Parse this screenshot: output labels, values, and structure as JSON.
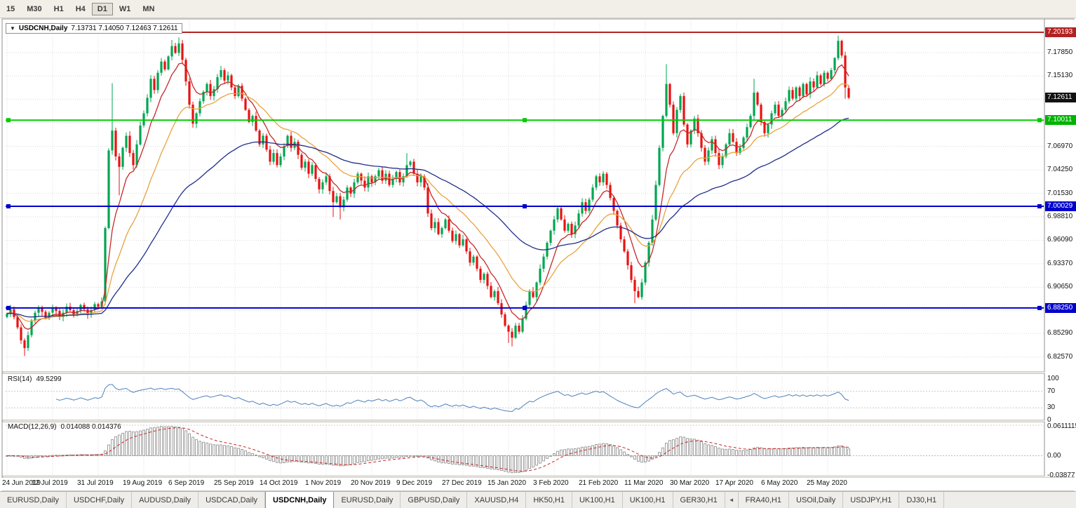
{
  "toolbar": {
    "timeframes": [
      {
        "label": "15",
        "active": false
      },
      {
        "label": "M30",
        "active": false
      },
      {
        "label": "H1",
        "active": false
      },
      {
        "label": "H4",
        "active": false
      },
      {
        "label": "D1",
        "active": true
      },
      {
        "label": "W1",
        "active": false
      },
      {
        "label": "MN",
        "active": false
      }
    ]
  },
  "chart": {
    "symbol": "USDCNH,Daily",
    "ohlc_text": "7.13731 7.14050 7.12463 7.12611",
    "open": "7.13731",
    "high": "7.14050",
    "low": "7.12463",
    "close": "7.12611"
  },
  "colors": {
    "bull": "#00A651",
    "bear": "#E81212",
    "grid": "#DBDBDB",
    "rsi_line": "#4F81BD",
    "macd_hist": "#9E9E9E",
    "macd_signal": "#CC2222",
    "badge_black": "#111111"
  },
  "price_axis": {
    "badges": [
      {
        "label": "7.20193",
        "value": 7.20193,
        "bg": "#B22222"
      },
      {
        "label": "7.12611",
        "value": 7.12611,
        "bg": "#111111"
      },
      {
        "label": "7.10011",
        "value": 7.10011,
        "bg": "#00B300"
      },
      {
        "label": "7.00029",
        "value": 7.00029,
        "bg": "#0000CC"
      },
      {
        "label": "6.88250",
        "value": 6.8825,
        "bg": "#0000CC"
      }
    ]
  },
  "rsi": {
    "name": "RSI(14)",
    "value": "49.5299",
    "period": 14,
    "levels": [
      70,
      30
    ],
    "axis": [
      {
        "label": "100",
        "value": 100
      },
      {
        "label": "70",
        "value": 70
      },
      {
        "label": "30",
        "value": 30
      },
      {
        "label": "0",
        "value": 0
      }
    ]
  },
  "macd": {
    "name": "MACD(12,26,9)",
    "values": "0.014088 0.014376",
    "last_main": 0.014088,
    "last_signal": 0.014376,
    "axis_max": 0.0611115,
    "axis_min": -0.03877,
    "axis": [
      {
        "label": "0.0611115",
        "value": 0.0611115
      },
      {
        "label": "0.00",
        "value": 0
      },
      {
        "label": "-0.03877",
        "value": -0.03877
      }
    ]
  },
  "tabs": {
    "items": [
      {
        "label": "EURUSD,Daily",
        "active": false
      },
      {
        "label": "USDCHF,Daily",
        "active": false
      },
      {
        "label": "AUDUSD,Daily",
        "active": false
      },
      {
        "label": "USDCAD,Daily",
        "active": false
      },
      {
        "label": "USDCNH,Daily",
        "active": true
      },
      {
        "label": "EURUSD,Daily",
        "active": false
      },
      {
        "label": "GBPUSD,Daily",
        "active": false
      },
      {
        "label": "XAUUSD,H4",
        "active": false
      },
      {
        "label": "HK50,H1",
        "active": false
      },
      {
        "label": "UK100,H1",
        "active": false
      },
      {
        "label": "UK100,H1",
        "active": false
      },
      {
        "label": "GER30,H1",
        "active": false
      },
      {
        "label": "◄",
        "active": false,
        "narrow": true
      },
      {
        "label": "FRA40,H1",
        "active": false
      },
      {
        "label": "USOil,Daily",
        "active": false
      },
      {
        "label": "USDJPY,H1",
        "active": false
      },
      {
        "label": "DJ30,H1",
        "active": false
      }
    ]
  },
  "chart_data": {
    "type": "candlestick",
    "title": "USDCNH,Daily",
    "symbol": "USDCNH",
    "timeframe": "Daily",
    "ylim": [
      6.808,
      7.213
    ],
    "first_open": 6.872,
    "last_candle": {
      "o": 7.13731,
      "h": 7.1405,
      "l": 7.12463,
      "c": 7.12611
    },
    "closes": [
      6.876,
      6.881,
      6.872,
      6.86,
      6.845,
      6.836,
      6.851,
      6.868,
      6.877,
      6.883,
      6.878,
      6.871,
      6.877,
      6.883,
      6.879,
      6.872,
      6.877,
      6.884,
      6.88,
      6.874,
      6.879,
      6.886,
      6.881,
      6.875,
      6.88,
      6.887,
      6.884,
      6.89,
      6.975,
      7.065,
      7.088,
      7.058,
      7.046,
      7.068,
      7.082,
      7.062,
      7.048,
      7.072,
      7.094,
      7.108,
      7.126,
      7.148,
      7.135,
      7.155,
      7.168,
      7.159,
      7.174,
      7.186,
      7.178,
      7.189,
      7.17,
      7.145,
      7.118,
      7.096,
      7.108,
      7.122,
      7.133,
      7.142,
      7.128,
      7.136,
      7.15,
      7.158,
      7.146,
      7.152,
      7.138,
      7.128,
      7.14,
      7.125,
      7.112,
      7.098,
      7.105,
      7.088,
      7.072,
      7.082,
      7.066,
      7.052,
      7.062,
      7.048,
      7.058,
      7.07,
      7.082,
      7.068,
      7.075,
      7.06,
      7.045,
      7.052,
      7.038,
      7.048,
      7.032,
      7.02,
      7.028,
      7.035,
      7.018,
      7.005,
      7.012,
      6.999,
      7.008,
      7.022,
      7.015,
      7.028,
      7.038,
      7.03,
      7.022,
      7.035,
      7.028,
      7.035,
      7.042,
      7.03,
      7.038,
      7.025,
      7.032,
      7.04,
      7.028,
      7.035,
      7.048,
      7.052,
      7.038,
      7.028,
      7.035,
      7.022,
      6.992,
      6.975,
      6.982,
      6.968,
      6.975,
      6.985,
      6.972,
      6.96,
      6.968,
      6.955,
      6.962,
      6.948,
      6.935,
      6.942,
      6.928,
      6.915,
      6.922,
      6.908,
      6.895,
      6.902,
      6.888,
      6.875,
      6.862,
      6.855,
      6.848,
      6.862,
      6.855,
      6.87,
      6.886,
      6.902,
      6.895,
      6.912,
      6.928,
      6.942,
      6.958,
      6.972,
      6.985,
      6.998,
      6.985,
      6.972,
      6.98,
      6.968,
      6.978,
      6.992,
      7.005,
      6.995,
      7.008,
      7.022,
      7.035,
      7.028,
      7.038,
      7.025,
      7.01,
      6.995,
      6.978,
      6.962,
      6.948,
      6.932,
      6.915,
      6.902,
      6.895,
      6.912,
      6.935,
      6.958,
      6.985,
      7.025,
      7.068,
      7.105,
      7.142,
      7.118,
      7.085,
      7.112,
      7.128,
      7.095,
      7.072,
      7.088,
      7.102,
      7.085,
      7.068,
      7.052,
      7.065,
      7.078,
      7.062,
      7.048,
      7.058,
      7.072,
      7.085,
      7.075,
      7.062,
      7.068,
      7.08,
      7.092,
      7.105,
      7.132,
      7.118,
      7.098,
      7.085,
      7.095,
      7.108,
      7.118,
      7.105,
      7.112,
      7.122,
      7.135,
      7.125,
      7.138,
      7.128,
      7.142,
      7.13,
      7.145,
      7.138,
      7.152,
      7.142,
      7.155,
      7.148,
      7.158,
      7.172,
      7.192,
      7.175,
      7.138,
      7.12611
    ],
    "overrides": {
      "5": {
        "l": 6.827
      },
      "30": {
        "h": 7.143
      },
      "32": {
        "l": 7.013
      },
      "47": {
        "h": 7.193
      },
      "49": {
        "h": 7.196
      },
      "93": {
        "l": 6.988
      },
      "95": {
        "l": 6.985
      },
      "114": {
        "h": 7.062
      },
      "143": {
        "l": 6.842
      },
      "144": {
        "l": 6.838
      },
      "179": {
        "l": 6.888
      },
      "188": {
        "h": 7.165
      },
      "213": {
        "h": 7.148
      },
      "237": {
        "h": 7.198
      },
      "239": {
        "l": 7.125
      },
      "240": {
        "o": 7.13731,
        "h": 7.1405,
        "l": 7.12463,
        "c": 7.12611
      }
    },
    "x_labels": [
      "24 Jun 2019",
      "12 Jul 2019",
      "31 Jul 2019",
      "19 Aug 2019",
      "6 Sep 2019",
      "25 Sep 2019",
      "14 Oct 2019",
      "1 Nov 2019",
      "20 Nov 2019",
      "9 Dec 2019",
      "27 Dec 2019",
      "15 Jan 2020",
      "3 Feb 2020",
      "21 Feb 2020",
      "11 Mar 2020",
      "30 Mar 2020",
      "17 Apr 2020",
      "6 May 2020",
      "25 May 2020"
    ],
    "x_label_indices": [
      0,
      13,
      26,
      39,
      52,
      65,
      78,
      91,
      104,
      117,
      130,
      143,
      156,
      169,
      182,
      195,
      208,
      221,
      234
    ],
    "y_ticks_labeled": [
      "7.17850",
      "7.15130",
      "7.06970",
      "7.04250",
      "7.01530",
      "6.98810",
      "6.96090",
      "6.93370",
      "6.90650",
      "6.85290",
      "6.82570"
    ],
    "y_ticks_unlabeled": [
      7.1241,
      7.0969,
      6.8793
    ],
    "levels": [
      {
        "value": 7.20193,
        "label": "7.20193",
        "color": "#B22222",
        "width": 2,
        "handles": false
      },
      {
        "value": 7.10011,
        "label": "7.10011",
        "color": "#00CC00",
        "width": 2,
        "handles": true
      },
      {
        "value": 7.00029,
        "label": "7.00029",
        "color": "#0000CC",
        "width": 2,
        "handles": true
      },
      {
        "value": 6.8825,
        "label": "6.88250",
        "color": "#0000CC",
        "width": 2,
        "handles": true
      }
    ],
    "moving_averages": [
      {
        "name": "ma-fast",
        "period": 8,
        "color": "#C62828"
      },
      {
        "name": "ma-medium",
        "period": 21,
        "color": "#E8A33D"
      },
      {
        "name": "ma-slow",
        "period": 55,
        "color": "#1F2D8A"
      }
    ],
    "indicators": [
      {
        "name": "RSI",
        "period": 14,
        "last": 49.5299
      },
      {
        "name": "MACD",
        "params": "12,26,9",
        "last_main": 0.014088,
        "last_signal": 0.014376
      }
    ]
  }
}
